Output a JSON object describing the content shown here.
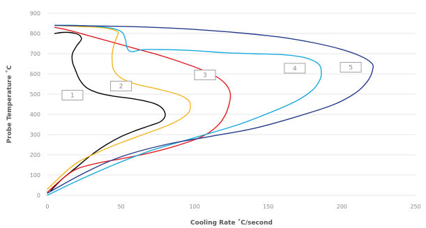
{
  "chart_data": {
    "type": "line",
    "title": "",
    "xlabel": "Cooling Rate ˚C/second",
    "ylabel": "Probe Temperature ˚C",
    "xlim": [
      0,
      250
    ],
    "ylim": [
      0,
      900
    ],
    "x_ticks": [
      0,
      50,
      100,
      150,
      200,
      250
    ],
    "y_ticks": [
      0,
      100,
      200,
      300,
      400,
      500,
      600,
      700,
      800,
      900
    ],
    "grid": "horizontal",
    "series": [
      {
        "name": "1",
        "color": "#000000",
        "label_at": [
          17,
          495
        ],
        "x": [
          2,
          10,
          20,
          30,
          40,
          50,
          60,
          70,
          77,
          80,
          78,
          72,
          60,
          45,
          35,
          27,
          22,
          19,
          17,
          17,
          20,
          23,
          22,
          19,
          15,
          10,
          5
        ],
        "y": [
          20,
          80,
          140,
          200,
          250,
          290,
          320,
          345,
          365,
          395,
          430,
          455,
          475,
          490,
          505,
          530,
          570,
          620,
          660,
          700,
          740,
          770,
          790,
          800,
          805,
          805,
          800
        ]
      },
      {
        "name": "2",
        "color": "#f2b61c",
        "label_at": [
          50,
          540
        ],
        "x": [
          0,
          10,
          20,
          35,
          50,
          65,
          80,
          90,
          96,
          97,
          95,
          88,
          75,
          60,
          50,
          45,
          44,
          44,
          45,
          47,
          48,
          44,
          35,
          20,
          5
        ],
        "y": [
          30,
          100,
          160,
          215,
          260,
          300,
          340,
          375,
          410,
          450,
          475,
          500,
          525,
          550,
          580,
          620,
          660,
          700,
          740,
          780,
          805,
          820,
          830,
          835,
          840
        ]
      },
      {
        "name": "3",
        "color": "#e21b24",
        "label_at": [
          107,
          595
        ],
        "x": [
          0,
          10,
          20,
          35,
          50,
          70,
          90,
          105,
          115,
          121,
          124,
          124,
          121,
          115,
          105,
          90,
          75,
          60,
          45,
          30,
          15,
          5
        ],
        "y": [
          15,
          80,
          130,
          160,
          180,
          210,
          250,
          290,
          340,
          400,
          470,
          510,
          550,
          585,
          620,
          660,
          695,
          725,
          755,
          785,
          815,
          830
        ]
      },
      {
        "name": "4",
        "color": "#1aa9dc",
        "label_at": [
          168,
          628
        ],
        "x": [
          0,
          20,
          45,
          70,
          100,
          130,
          155,
          170,
          180,
          185,
          186,
          184,
          175,
          160,
          140,
          120,
          100,
          80,
          65,
          57,
          54,
          53,
          50,
          40,
          20,
          5
        ],
        "y": [
          0,
          70,
          150,
          220,
          285,
          350,
          420,
          470,
          520,
          570,
          610,
          650,
          680,
          695,
          700,
          705,
          715,
          720,
          720,
          710,
          730,
          770,
          810,
          830,
          840,
          840
        ]
      },
      {
        "name": "5",
        "color": "#263b8a",
        "label_at": [
          206,
          633
        ],
        "x": [
          0,
          25,
          50,
          80,
          110,
          140,
          170,
          195,
          210,
          218,
          221,
          220,
          212,
          198,
          180,
          160,
          135,
          110,
          80,
          50,
          25,
          5
        ],
        "y": [
          10,
          110,
          190,
          250,
          290,
          330,
          390,
          450,
          510,
          570,
          625,
          655,
          690,
          725,
          755,
          780,
          800,
          815,
          828,
          835,
          838,
          840
        ]
      }
    ]
  }
}
